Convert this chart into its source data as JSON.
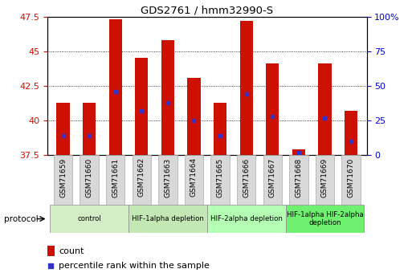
{
  "title": "GDS2761 / hmm32990-S",
  "samples": [
    "GSM71659",
    "GSM71660",
    "GSM71661",
    "GSM71662",
    "GSM71663",
    "GSM71664",
    "GSM71665",
    "GSM71666",
    "GSM71667",
    "GSM71668",
    "GSM71669",
    "GSM71670"
  ],
  "count_values": [
    41.3,
    41.3,
    47.3,
    44.5,
    45.8,
    43.1,
    41.3,
    47.2,
    44.1,
    37.9,
    44.1,
    40.7
  ],
  "percentile_values": [
    14,
    14,
    46,
    32,
    38,
    25,
    14,
    44,
    28,
    2,
    27,
    10
  ],
  "ymin": 37.5,
  "ymax": 47.5,
  "yticks": [
    37.5,
    40.0,
    42.5,
    45.0,
    47.5
  ],
  "ytick_labels": [
    "37.5",
    "40",
    "42.5",
    "45",
    "47.5"
  ],
  "right_yticks": [
    0,
    25,
    50,
    75,
    100
  ],
  "right_ytick_labels": [
    "0",
    "25",
    "50",
    "75",
    "100%"
  ],
  "bar_color": "#cc1100",
  "marker_color": "#3333cc",
  "bar_bottom": 37.5,
  "group_defs": [
    {
      "start": 0,
      "end": 2,
      "label": "control",
      "color": "#d4edc4"
    },
    {
      "start": 3,
      "end": 5,
      "label": "HIF-1alpha depletion",
      "color": "#c4e8b4"
    },
    {
      "start": 6,
      "end": 8,
      "label": "HIF-2alpha depletion",
      "color": "#b4ffb4"
    },
    {
      "start": 9,
      "end": 11,
      "label": "HIF-1alpha HIF-2alpha\ndepletion",
      "color": "#70f070"
    }
  ],
  "xlabel_color": "#cc1100",
  "ylabel_right_color": "#0000cc",
  "tick_bg_color": "#d8d8d8",
  "bar_width": 0.5
}
